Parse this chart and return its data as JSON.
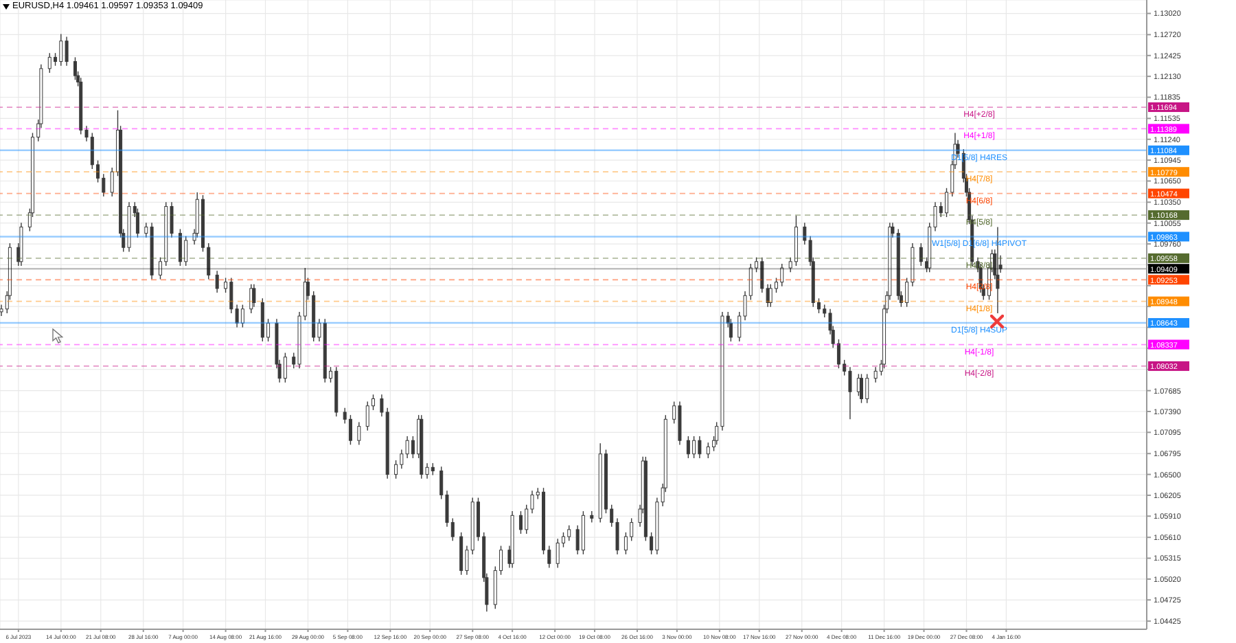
{
  "chart_data": {
    "type": "candlestick",
    "title": "EURUSD,H4  1.09461 1.09597 1.09353 1.09409",
    "color": "#3a3a3a",
    "categories": [
      null,
      null,
      null,
      null,
      null,
      null,
      "6 Jul 2023",
      null,
      null,
      null,
      null,
      null,
      null,
      null,
      null,
      null,
      null,
      null,
      null,
      null,
      null,
      "14 Jul 00:00",
      null,
      null,
      null,
      null,
      null,
      null,
      null,
      null,
      null,
      null,
      null,
      null,
      null,
      "21 Jul 08:00",
      null,
      null,
      null,
      null,
      null,
      null,
      null,
      null,
      null,
      null,
      null,
      null,
      null,
      null,
      "28 Jul 16:00",
      null,
      null,
      null,
      null,
      null,
      null,
      null,
      null,
      null,
      null,
      null,
      null,
      null,
      "7 Aug 00:00",
      null,
      null,
      null,
      null,
      null,
      null,
      null,
      null,
      null,
      null,
      null,
      null,
      null,
      null,
      "14 Aug 08:00",
      null,
      null,
      null,
      null,
      null,
      null,
      null,
      null,
      null,
      null,
      null,
      null,
      null,
      "21 Aug 16:00",
      null,
      null,
      null,
      null,
      null,
      null,
      null,
      null,
      null,
      null,
      null,
      null,
      null,
      null,
      "29 Aug 00:00",
      null,
      null,
      null,
      null,
      null,
      null,
      null,
      null,
      null,
      null,
      null,
      null,
      null,
      "5 Sep 08:00",
      null,
      null,
      null,
      null,
      null,
      null,
      null,
      null,
      null,
      null,
      null,
      null,
      null,
      null,
      "12 Sep 16:00",
      null,
      null,
      null,
      null,
      null,
      null,
      null,
      null,
      null,
      null,
      null,
      null,
      null,
      "20 Sep 00:00",
      null,
      null,
      null,
      null,
      null,
      null,
      null,
      null,
      null,
      null,
      null,
      null,
      null,
      null,
      "27 Sep 08:00",
      null,
      null,
      null,
      null,
      null,
      null,
      null,
      null,
      null,
      null,
      null,
      null,
      null,
      "4 Oct 16:00",
      null,
      null,
      null,
      null,
      null,
      null,
      null,
      null,
      null,
      null,
      null,
      null,
      null,
      null,
      "12 Oct 00:00",
      null,
      null,
      null,
      null,
      null,
      null,
      null,
      null,
      null,
      null,
      null,
      null,
      null,
      "19 Oct 08:00",
      null,
      null,
      null,
      null,
      null,
      null,
      null,
      null,
      null,
      null,
      null,
      null,
      null,
      null,
      "26 Oct 16:00",
      null,
      null,
      null,
      null,
      null,
      null,
      null,
      null,
      null,
      null,
      null,
      null,
      null,
      "3 Nov 00:00",
      null,
      null,
      null,
      null,
      null,
      null,
      null,
      null,
      null,
      null,
      null,
      null,
      null,
      null,
      "10 Nov 08:00",
      null,
      null,
      null,
      null,
      null,
      null,
      null,
      null,
      null,
      null,
      null,
      null,
      null,
      "17 Nov 16:00",
      null,
      null,
      null,
      null,
      null,
      null,
      null,
      null,
      null,
      null,
      null,
      null,
      null,
      null,
      "27 Nov 00:00",
      null,
      null,
      null,
      null,
      null,
      null,
      null,
      null,
      null,
      null,
      null,
      null,
      null,
      "4 Dec 08:00",
      null,
      null,
      null,
      null,
      null,
      null,
      null,
      null,
      null,
      null,
      null,
      null,
      null,
      null,
      "11 Dec 16:00",
      null,
      null,
      null,
      null,
      null,
      null,
      null,
      null,
      null,
      null,
      null,
      null,
      null,
      "19 Dec 00:00",
      null,
      null,
      null,
      null,
      null,
      null,
      null,
      null,
      null,
      null,
      null,
      null,
      null,
      null,
      "27 Dec 08:00",
      null,
      null,
      null,
      null,
      null,
      null,
      null,
      null,
      null,
      null,
      null,
      null,
      null,
      "4 Jan 16:00",
      null,
      null,
      null,
      null,
      null,
      null,
      null,
      null,
      null,
      null,
      null,
      null,
      null,
      null,
      null,
      null,
      null,
      null,
      null,
      null,
      null,
      null,
      null,
      null,
      null,
      null,
      null,
      null,
      null,
      null,
      null,
      null,
      null,
      null,
      null,
      null,
      null,
      null,
      null,
      null,
      null,
      null,
      null,
      null,
      null,
      null,
      null,
      null,
      null
    ],
    "ohlc": [
      [
        1.088,
        1.089,
        1.0874,
        1.0884
      ],
      null,
      [
        1.0884,
        1.0909,
        1.0878,
        1.0903
      ],
      [
        1.0903,
        1.0977,
        1.0897,
        1.0971
      ],
      null,
      null,
      [
        1.0971,
        1.0977,
        1.0945,
        1.0951
      ],
      [
        1.0951,
        1.1006,
        1.0945,
        1.1
      ],
      null,
      null,
      [
        1.1,
        1.1026,
        1.0994,
        1.102
      ],
      [
        1.102,
        1.1133,
        1.1014,
        1.1127
      ],
      null,
      [
        1.1127,
        1.1152,
        1.1121,
        1.1146
      ],
      [
        1.1146,
        1.123,
        1.114,
        1.1224
      ],
      null,
      null,
      [
        1.1224,
        1.1246,
        1.1218,
        1.124
      ],
      null,
      [
        1.124,
        1.1246,
        1.1228,
        1.1234
      ],
      null,
      [
        1.1234,
        1.1273,
        1.1228,
        1.1263
      ],
      null,
      [
        1.1263,
        1.1269,
        1.1228,
        1.1234
      ],
      null,
      null,
      [
        1.1234,
        1.124,
        1.1208,
        1.1214
      ],
      [
        1.1214,
        1.122,
        1.1199,
        1.1205
      ],
      [
        1.1205,
        1.1211,
        1.1131,
        1.1137
      ],
      null,
      [
        1.1137,
        1.1143,
        1.1121,
        1.1127
      ],
      null,
      [
        1.1127,
        1.1133,
        1.1082,
        1.1088
      ],
      null,
      [
        1.1088,
        1.1094,
        1.1063,
        1.1069
      ],
      null,
      [
        1.1069,
        1.1075,
        1.1043,
        1.1049
      ],
      null,
      null,
      [
        1.1049,
        1.1084,
        1.1043,
        1.1078
      ],
      null,
      [
        1.1078,
        1.1165,
        1.1072,
        1.1137
      ],
      [
        1.1137,
        1.1143,
        1.0985,
        1.0991
      ],
      [
        1.0991,
        1.0997,
        1.0965,
        1.0971
      ],
      null,
      [
        1.0971,
        1.1035,
        1.0965,
        1.1029
      ],
      null,
      [
        1.1029,
        1.1035,
        1.1014,
        1.102
      ],
      [
        1.102,
        1.1026,
        1.0985,
        1.0991
      ],
      null,
      null,
      [
        1.0991,
        1.1006,
        1.0985,
        1.1
      ],
      null,
      [
        1.1,
        1.1006,
        1.0926,
        1.0932
      ],
      null,
      null,
      [
        1.0932,
        1.0957,
        1.0926,
        1.0951
      ],
      null,
      [
        1.0951,
        1.1035,
        1.0945,
        1.1029
      ],
      null,
      [
        1.1029,
        1.1035,
        1.0985,
        1.0991
      ],
      null,
      null,
      [
        1.0991,
        1.0997,
        1.0945,
        1.0951
      ],
      null,
      [
        1.0951,
        1.0987,
        1.0945,
        1.0981
      ],
      null,
      null,
      [
        1.0981,
        1.0997,
        1.0975,
        1.0991
      ],
      [
        1.0991,
        1.1049,
        1.0985,
        1.1039
      ],
      null,
      [
        1.1039,
        1.1045,
        1.0965,
        1.0971
      ],
      null,
      [
        1.0971,
        1.0977,
        1.0926,
        1.0932
      ],
      null,
      null,
      [
        1.0932,
        1.0938,
        1.0907,
        1.0913
      ],
      null,
      null,
      [
        1.0913,
        1.0928,
        1.0907,
        1.0922
      ],
      null,
      [
        1.0922,
        1.0928,
        1.0878,
        1.0884
      ],
      null,
      [
        1.0884,
        1.089,
        1.0858,
        1.0864
      ],
      null,
      [
        1.0864,
        1.089,
        1.0858,
        1.0884
      ],
      null,
      null,
      [
        1.0884,
        1.0919,
        1.0878,
        1.0913
      ],
      [
        1.0913,
        1.0919,
        1.0887,
        1.0893
      ],
      null,
      null,
      [
        1.0893,
        1.0899,
        1.0838,
        1.0844
      ],
      null,
      [
        1.0844,
        1.087,
        1.0838,
        1.0864
      ],
      null,
      null,
      [
        1.0864,
        1.087,
        1.08,
        1.0806
      ],
      [
        1.0806,
        1.0812,
        1.078,
        1.0786
      ],
      null,
      [
        1.0786,
        1.0822,
        1.078,
        1.0816
      ],
      null,
      null,
      [
        1.0816,
        1.0822,
        1.08,
        1.0806
      ],
      null,
      [
        1.0806,
        1.088,
        1.08,
        1.0874
      ],
      null,
      [
        1.0874,
        1.0942,
        1.0868,
        1.0922
      ],
      [
        1.0922,
        1.0928,
        1.0897,
        1.0903
      ],
      null,
      [
        1.0903,
        1.0909,
        1.0838,
        1.0844
      ],
      null,
      [
        1.0844,
        1.087,
        1.0838,
        1.0864
      ],
      null,
      [
        1.0864,
        1.087,
        1.078,
        1.0786
      ],
      null,
      [
        1.0786,
        1.0802,
        1.078,
        1.0796
      ],
      null,
      [
        1.0796,
        1.0802,
        1.0732,
        1.0738
      ],
      null,
      null,
      [
        1.0738,
        1.0744,
        1.0722,
        1.0728
      ],
      null,
      [
        1.0728,
        1.0734,
        1.0692,
        1.0698
      ],
      null,
      null,
      [
        1.0698,
        1.0724,
        1.0692,
        1.0718
      ],
      null,
      null,
      [
        1.0718,
        1.0753,
        1.0712,
        1.0747
      ],
      null,
      [
        1.0747,
        1.0763,
        1.0741,
        1.0757
      ],
      null,
      null,
      [
        1.0757,
        1.0763,
        1.0732,
        1.0738
      ],
      null,
      [
        1.0738,
        1.0744,
        1.0644,
        1.065
      ],
      null,
      null,
      [
        1.065,
        1.067,
        1.0644,
        1.0664
      ],
      null,
      [
        1.0664,
        1.0685,
        1.0658,
        1.0679
      ],
      null,
      [
        1.0679,
        1.0704,
        1.0673,
        1.0698
      ],
      null,
      [
        1.0698,
        1.0704,
        1.0673,
        1.0679
      ],
      null,
      [
        1.0679,
        1.0734,
        1.0673,
        1.0728
      ],
      [
        1.0728,
        1.0734,
        1.0644,
        1.065
      ],
      null,
      [
        1.065,
        1.0666,
        1.0644,
        1.066
      ],
      null,
      [
        1.066,
        1.0666,
        1.0649,
        1.0655
      ],
      null,
      null,
      [
        1.0655,
        1.0661,
        1.0615,
        1.0621
      ],
      null,
      [
        1.0621,
        1.0627,
        1.0576,
        1.0582
      ],
      null,
      [
        1.0582,
        1.0588,
        1.0556,
        1.0562
      ],
      null,
      null,
      [
        1.0562,
        1.0568,
        1.0508,
        1.0514
      ],
      null,
      [
        1.0514,
        1.0549,
        1.0508,
        1.0543
      ],
      null,
      [
        1.0543,
        1.0617,
        1.0537,
        1.0611
      ],
      null,
      [
        1.0611,
        1.0617,
        1.0556,
        1.0562
      ],
      null,
      [
        1.0562,
        1.0568,
        1.0498,
        1.0504
      ],
      [
        1.0504,
        1.051,
        1.0456,
        1.0466
      ],
      null,
      null,
      [
        1.0466,
        1.052,
        1.046,
        1.0514
      ],
      null,
      [
        1.0514,
        1.0549,
        1.0508,
        1.0543
      ],
      null,
      null,
      [
        1.0543,
        1.0549,
        1.0518,
        1.0524
      ],
      [
        1.0524,
        1.0598,
        1.0518,
        1.0592
      ],
      null,
      null,
      [
        1.0592,
        1.0598,
        1.0566,
        1.0572
      ],
      null,
      [
        1.0572,
        1.0607,
        1.0566,
        1.0601
      ],
      null,
      [
        1.0601,
        1.0627,
        1.0595,
        1.0621
      ],
      null,
      [
        1.0621,
        1.0631,
        1.0615,
        1.0625
      ],
      null,
      [
        1.0625,
        1.0631,
        1.0537,
        1.0543
      ],
      null,
      [
        1.0543,
        1.0549,
        1.0518,
        1.0524
      ],
      null,
      null,
      [
        1.0524,
        1.0559,
        1.0518,
        1.0553
      ],
      null,
      [
        1.0553,
        1.0568,
        1.0547,
        1.0562
      ],
      null,
      [
        1.0562,
        1.0578,
        1.0556,
        1.0572
      ],
      null,
      null,
      [
        1.0572,
        1.0578,
        1.0537,
        1.0543
      ],
      null,
      [
        1.0543,
        1.0598,
        1.0537,
        1.0592
      ],
      null,
      null,
      [
        1.0592,
        1.0598,
        1.0582,
        1.0588
      ],
      null,
      null,
      [
        1.0588,
        1.0694,
        1.0582,
        1.0679
      ],
      null,
      [
        1.0679,
        1.0685,
        1.0595,
        1.0601
      ],
      null,
      [
        1.0601,
        1.0607,
        1.0576,
        1.0582
      ],
      null,
      [
        1.0582,
        1.0588,
        1.0537,
        1.0543
      ],
      null,
      null,
      [
        1.0543,
        1.0568,
        1.0537,
        1.0562
      ],
      null,
      [
        1.0562,
        1.0588,
        1.0556,
        1.0582
      ],
      null,
      null,
      [
        1.0582,
        1.0607,
        1.0576,
        1.0601
      ],
      [
        1.0601,
        1.0675,
        1.0595,
        1.0669
      ],
      [
        1.0669,
        1.0675,
        1.0556,
        1.0562
      ],
      null,
      [
        1.0562,
        1.0568,
        1.0537,
        1.0543
      ],
      null,
      [
        1.0543,
        1.0617,
        1.0537,
        1.0611
      ],
      null,
      [
        1.0611,
        1.0637,
        1.0605,
        1.0631
      ],
      [
        1.0631,
        1.0734,
        1.0625,
        1.0728
      ],
      null,
      null,
      [
        1.0728,
        1.0753,
        1.0722,
        1.0747
      ],
      null,
      [
        1.0747,
        1.0753,
        1.0692,
        1.0698
      ],
      null,
      null,
      [
        1.0698,
        1.0704,
        1.0673,
        1.0679
      ],
      null,
      [
        1.0679,
        1.0704,
        1.0673,
        1.0698
      ],
      null,
      [
        1.0698,
        1.0704,
        1.0673,
        1.0679
      ],
      null,
      null,
      [
        1.0679,
        1.0695,
        1.0673,
        1.0689
      ],
      null,
      [
        1.0689,
        1.0704,
        1.0683,
        1.0698
      ],
      [
        1.0698,
        1.0724,
        1.0692,
        1.0718
      ],
      null,
      [
        1.0718,
        1.088,
        1.0712,
        1.0874
      ],
      null,
      [
        1.0874,
        1.088,
        1.0858,
        1.0864
      ],
      [
        1.0864,
        1.087,
        1.0838,
        1.0844
      ],
      null,
      null,
      [
        1.0844,
        1.088,
        1.0838,
        1.0874
      ],
      null,
      [
        1.0874,
        1.0909,
        1.0868,
        1.0903
      ],
      null,
      [
        1.0903,
        1.0948,
        1.0897,
        1.0942
      ],
      null,
      [
        1.0942,
        1.0957,
        1.0936,
        1.0951
      ],
      null,
      [
        1.0951,
        1.0957,
        1.0907,
        1.0913
      ],
      null,
      [
        1.0913,
        1.0919,
        1.0887,
        1.0893
      ],
      [
        1.0893,
        1.0919,
        1.0887,
        1.0913
      ],
      null,
      [
        1.0913,
        1.0928,
        1.0907,
        1.0922
      ],
      null,
      [
        1.0922,
        1.0948,
        1.0916,
        1.0942
      ],
      null,
      null,
      [
        1.0942,
        1.0957,
        1.0936,
        1.0951
      ],
      null,
      [
        1.0951,
        1.1016,
        1.0945,
        1.1
      ],
      null,
      null,
      [
        1.1,
        1.1006,
        1.0975,
        1.0981
      ],
      null,
      [
        1.0981,
        1.0987,
        1.0945,
        1.0951
      ],
      [
        1.0951,
        1.0957,
        1.0887,
        1.0893
      ],
      null,
      [
        1.0893,
        1.0899,
        1.0878,
        1.0884
      ],
      null,
      [
        1.0884,
        1.089,
        1.0872,
        1.0878
      ],
      null,
      [
        1.0878,
        1.0884,
        1.0848,
        1.0854
      ],
      [
        1.0854,
        1.086,
        1.0829,
        1.0835
      ],
      null,
      [
        1.0835,
        1.0841,
        1.08,
        1.0806
      ],
      null,
      [
        1.0806,
        1.0812,
        1.079,
        1.0796
      ],
      null,
      [
        1.0796,
        1.0802,
        1.0728,
        1.0767
      ],
      null,
      null,
      [
        1.0767,
        1.0792,
        1.0761,
        1.0786
      ],
      [
        1.0786,
        1.0792,
        1.0751,
        1.0757
      ],
      null,
      [
        1.0757,
        1.0792,
        1.0751,
        1.0786
      ],
      null,
      null,
      [
        1.0786,
        1.0802,
        1.078,
        1.0796
      ],
      null,
      [
        1.0796,
        1.0812,
        1.079,
        1.0806
      ],
      [
        1.0806,
        1.089,
        1.08,
        1.0884
      ],
      [
        1.0884,
        1.0909,
        1.0878,
        1.0903
      ],
      [
        1.0903,
        1.1006,
        1.0897,
        1.1
      ],
      [
        1.1,
        1.1006,
        1.0985,
        1.0991
      ],
      null,
      [
        1.0991,
        1.0997,
        1.0897,
        1.0903
      ],
      [
        1.0903,
        1.0909,
        1.0887,
        1.0893
      ],
      null,
      [
        1.0893,
        1.0928,
        1.0887,
        1.0922
      ],
      null,
      [
        1.0922,
        1.0977,
        1.0916,
        1.0971
      ],
      null,
      null,
      [
        1.0971,
        1.0977,
        1.0945,
        1.0951
      ],
      null,
      [
        1.0951,
        1.0957,
        1.0936,
        1.0942
      ],
      [
        1.0942,
        1.1006,
        1.0936,
        1.1
      ],
      null,
      [
        1.1,
        1.1035,
        1.0994,
        1.1029
      ],
      null,
      [
        1.1029,
        1.1035,
        1.1014,
        1.102
      ],
      null,
      [
        1.102,
        1.1055,
        1.1014,
        1.1049
      ],
      null,
      [
        1.1049,
        1.1094,
        1.1043,
        1.1088
      ],
      [
        1.1088,
        1.1133,
        1.1082,
        1.1117
      ],
      [
        1.1117,
        1.1123,
        1.1098,
        1.1104
      ],
      null,
      [
        1.1104,
        1.111,
        1.1063,
        1.1069
      ],
      [
        1.1069,
        1.1075,
        1.1043,
        1.1049
      ],
      [
        1.1049,
        1.1055,
        1.1004,
        1.101
      ],
      [
        1.101,
        1.1016,
        1.0945,
        1.0951
      ],
      null,
      [
        1.0951,
        1.0957,
        1.0936,
        1.0942
      ],
      [
        1.0942,
        1.0948,
        1.0907,
        1.0913
      ],
      [
        1.0913,
        1.0919,
        1.0897,
        1.0903
      ],
      null,
      [
        1.0903,
        1.0948,
        1.0897,
        1.0942
      ],
      [
        1.0942,
        1.0968,
        1.0936,
        1.0962
      ],
      [
        1.0962,
        1.0968,
        1.0926,
        1.0932
      ],
      [
        1.0932,
        1.1,
        1.0878,
        1.0913
      ],
      [
        1.09461,
        1.09597,
        1.09353,
        1.09409
      ],
      null,
      null,
      null,
      null,
      null,
      null,
      null,
      null,
      null,
      null,
      null,
      null,
      null,
      null,
      null,
      null,
      null,
      null,
      null,
      null,
      null,
      null,
      null,
      null,
      null,
      null,
      null,
      null,
      null,
      null,
      null,
      null,
      null,
      null,
      null,
      null,
      null,
      null,
      null,
      null,
      null,
      null,
      null,
      null,
      null,
      null,
      null,
      null,
      null,
      null,
      null
    ],
    "ylim": [
      1.0431,
      1.1321
    ],
    "yticks": [
      {
        "value": 1.1302,
        "label": "1.13020"
      },
      {
        "value": 1.1272,
        "label": "1.12720"
      },
      {
        "value": 1.12425,
        "label": "1.12425"
      },
      {
        "value": 1.1213,
        "label": "1.12130"
      },
      {
        "value": 1.11835,
        "label": "1.11835"
      },
      {
        "value": 1.11535,
        "label": "1.11535"
      },
      {
        "value": 1.1124,
        "label": "1.11240"
      },
      {
        "value": 1.10945,
        "label": "1.10945"
      },
      {
        "value": 1.1065,
        "label": "1.10650"
      },
      {
        "value": 1.1035,
        "label": "1.10350"
      },
      {
        "value": 1.10055,
        "label": "1.10055"
      },
      {
        "value": 1.0976,
        "label": "1.09760"
      },
      {
        "value": 1.09465,
        "label": null
      },
      {
        "value": 1.0917,
        "label": null
      },
      {
        "value": 1.08875,
        "label": null
      },
      {
        "value": 1.0858,
        "label": null
      },
      {
        "value": 1.08285,
        "label": null
      },
      {
        "value": 1.07985,
        "label": null
      },
      {
        "value": 1.07685,
        "label": "1.07685"
      },
      {
        "value": 1.0739,
        "label": "1.07390"
      },
      {
        "value": 1.07095,
        "label": "1.07095"
      },
      {
        "value": 1.06795,
        "label": "1.06795"
      },
      {
        "value": 1.065,
        "label": "1.06500"
      },
      {
        "value": 1.06205,
        "label": "1.06205"
      },
      {
        "value": 1.0591,
        "label": "1.05910"
      },
      {
        "value": 1.0561,
        "label": "1.05610"
      },
      {
        "value": 1.05315,
        "label": "1.05315"
      },
      {
        "value": 1.0502,
        "label": "1.05020"
      },
      {
        "value": 1.04725,
        "label": "1.04725"
      },
      {
        "value": 1.04425,
        "label": "1.04425"
      }
    ],
    "grid": true,
    "ref_lines": [
      {
        "axis": "y",
        "value": 1.11694,
        "label": "H4[+2/8]",
        "color": "#c71585",
        "line_style": "dashed"
      },
      {
        "axis": "y",
        "value": 1.11389,
        "label": "H4[+1/8]",
        "color": "#ff00ff",
        "line_style": "dashed"
      },
      {
        "axis": "y",
        "value": 1.11084,
        "label": "D1[5/8] H4RES",
        "color": "#1e90ff",
        "line_style": "solid"
      },
      {
        "axis": "y",
        "value": 1.10779,
        "label": "H4[7/8]",
        "color": "#ff8c00",
        "line_style": "dashed"
      },
      {
        "axis": "y",
        "value": 1.10474,
        "label": "H4[6/8]",
        "color": "#ff4500",
        "line_style": "dashed"
      },
      {
        "axis": "y",
        "value": 1.10168,
        "label": "H4[5/8]",
        "color": "#556b2f",
        "line_style": "dashed"
      },
      {
        "axis": "y",
        "value": 1.09863,
        "label": "W1[5/8] D1[6/8] H4PIVOT",
        "color": "#1e90ff",
        "line_style": "solid"
      },
      {
        "axis": "y",
        "value": 1.09558,
        "label": "H4[3/8]",
        "color": "#556b2f",
        "line_style": "dashed"
      },
      {
        "axis": "y",
        "value": 1.09409,
        "label": null,
        "color": "#000000",
        "line_style": "solid"
      },
      {
        "axis": "y",
        "value": 1.09253,
        "label": "H4[2/8]",
        "color": "#ff4500",
        "line_style": "dashed"
      },
      {
        "axis": "y",
        "value": 1.08948,
        "label": "H4[1/8]",
        "color": "#ff8c00",
        "line_style": "dashed"
      },
      {
        "axis": "y",
        "value": 1.08643,
        "label": "D1[5/8] H4SUP",
        "color": "#1e90ff",
        "line_style": "solid"
      },
      {
        "axis": "y",
        "value": 1.08337,
        "label": "H4[-1/8]",
        "color": "#ff00ff",
        "line_style": "dashed"
      },
      {
        "axis": "y",
        "value": 1.08032,
        "label": "H4[-2/8]",
        "color": "#c71585",
        "line_style": "dashed"
      }
    ],
    "annotations": [
      "1.11694",
      "1.11389",
      "1.11084",
      "1.10779",
      "1.10474",
      "1.10168",
      "1.09863",
      "1.09558",
      "1.09409",
      "1.09253",
      "1.08948",
      "1.08643",
      "1.08337",
      "1.08032"
    ]
  }
}
